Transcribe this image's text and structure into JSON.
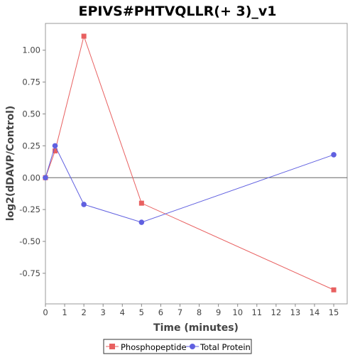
{
  "chart_data": {
    "type": "line",
    "title": "EPIVS#PHTVQLLR(+ 3)_v1",
    "xlabel": "Time (minutes)",
    "ylabel": "log2(dDAVP/Control)",
    "xlim": [
      0,
      15.7
    ],
    "ylim": [
      -0.99,
      1.21
    ],
    "x_ticks": [
      0,
      1,
      2,
      3,
      4,
      5,
      6,
      7,
      8,
      9,
      10,
      11,
      12,
      13,
      14,
      15
    ],
    "y_ticks": [
      -0.75,
      -0.5,
      -0.25,
      0.0,
      0.25,
      0.5,
      0.75,
      1.0
    ],
    "y_tick_labels": [
      "-0.75",
      "-0.50",
      "-0.25",
      "0.00",
      "0.25",
      "0.50",
      "0.75",
      "1.00"
    ],
    "grid": false,
    "zero_line": true,
    "legend_position": "bottom",
    "series": [
      {
        "name": "Phosphopeptide",
        "color": "#e86060",
        "marker": "square",
        "x": [
          0,
          0.5,
          2,
          5,
          15
        ],
        "y": [
          0.0,
          0.21,
          1.11,
          -0.2,
          -0.88
        ]
      },
      {
        "name": "Total Protein",
        "color": "#6060e0",
        "marker": "circle",
        "x": [
          0,
          0.5,
          2,
          5,
          15
        ],
        "y": [
          0.0,
          0.25,
          -0.21,
          -0.35,
          0.18
        ]
      }
    ]
  }
}
